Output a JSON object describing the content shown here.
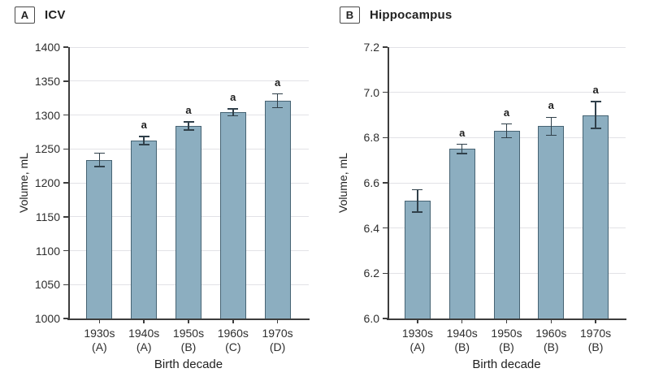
{
  "figure": {
    "panels": [
      {
        "letter": "A",
        "title": "ICV"
      },
      {
        "letter": "B",
        "title": "Hippocampus"
      }
    ]
  },
  "chart_data": [
    {
      "type": "bar",
      "title": "ICV",
      "categories": [
        "1930s",
        "1940s",
        "1950s",
        "1960s",
        "1970s"
      ],
      "category_sublabels": [
        "(A)",
        "(A)",
        "(B)",
        "(C)",
        "(D)"
      ],
      "values": [
        1234,
        1262,
        1284,
        1304,
        1321
      ],
      "errors": [
        10,
        6,
        6,
        5,
        10
      ],
      "annotations": [
        "",
        "a",
        "a",
        "a",
        "a"
      ],
      "xlabel": "Birth decade",
      "ylabel": "Volume, mL",
      "ylim": [
        1000,
        1400
      ],
      "ytick_labels": [
        "1000",
        "1050",
        "1100",
        "1150",
        "1200",
        "1250",
        "1300",
        "1350",
        "1400"
      ],
      "grid": true,
      "legend": "none",
      "bar_color": "#8caec0",
      "bar_border_color": "#466373",
      "error_color": "#30404a"
    },
    {
      "type": "bar",
      "title": "Hippocampus",
      "categories": [
        "1930s",
        "1940s",
        "1950s",
        "1960s",
        "1970s"
      ],
      "category_sublabels": [
        "(A)",
        "(B)",
        "(B)",
        "(B)",
        "(B)"
      ],
      "values": [
        6.52,
        6.75,
        6.83,
        6.85,
        6.9
      ],
      "errors": [
        0.05,
        0.02,
        0.03,
        0.04,
        0.06
      ],
      "annotations": [
        "",
        "a",
        "a",
        "a",
        "a"
      ],
      "xlabel": "Birth decade",
      "ylabel": "Volume, mL",
      "ylim": [
        6.0,
        7.2
      ],
      "ytick_labels": [
        "6.0",
        "6.2",
        "6.4",
        "6.6",
        "6.8",
        "7.0",
        "7.2"
      ],
      "grid": true,
      "legend": "none",
      "bar_color": "#8caec0",
      "bar_border_color": "#466373",
      "error_color": "#30404a"
    }
  ]
}
